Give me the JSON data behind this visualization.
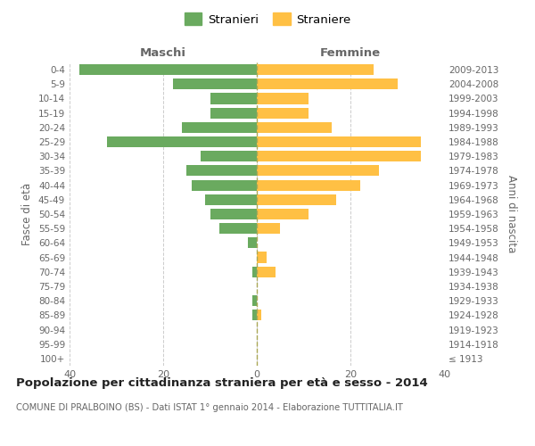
{
  "age_groups": [
    "100+",
    "95-99",
    "90-94",
    "85-89",
    "80-84",
    "75-79",
    "70-74",
    "65-69",
    "60-64",
    "55-59",
    "50-54",
    "45-49",
    "40-44",
    "35-39",
    "30-34",
    "25-29",
    "20-24",
    "15-19",
    "10-14",
    "5-9",
    "0-4"
  ],
  "birth_years": [
    "≤ 1913",
    "1914-1918",
    "1919-1923",
    "1924-1928",
    "1929-1933",
    "1934-1938",
    "1939-1943",
    "1944-1948",
    "1949-1953",
    "1954-1958",
    "1959-1963",
    "1964-1968",
    "1969-1973",
    "1974-1978",
    "1979-1983",
    "1984-1988",
    "1989-1993",
    "1994-1998",
    "1999-2003",
    "2004-2008",
    "2009-2013"
  ],
  "maschi": [
    0,
    0,
    0,
    1,
    1,
    0,
    1,
    0,
    2,
    8,
    10,
    11,
    14,
    15,
    12,
    32,
    16,
    10,
    10,
    18,
    38
  ],
  "femmine": [
    0,
    0,
    0,
    1,
    0,
    0,
    4,
    2,
    0,
    5,
    11,
    17,
    22,
    26,
    35,
    35,
    16,
    11,
    11,
    30,
    25
  ],
  "maschi_color": "#6aaa5f",
  "femmine_color": "#ffc044",
  "title": "Popolazione per cittadinanza straniera per età e sesso - 2014",
  "subtitle": "COMUNE DI PRALBOINO (BS) - Dati ISTAT 1° gennaio 2014 - Elaborazione TUTTITALIA.IT",
  "ylabel_left": "Fasce di età",
  "ylabel_right": "Anni di nascita",
  "header_left": "Maschi",
  "header_right": "Femmine",
  "legend_stranieri": "Stranieri",
  "legend_straniere": "Straniere",
  "xlim": 40,
  "background_color": "#ffffff",
  "grid_color": "#cccccc",
  "text_color": "#666666",
  "title_color": "#222222"
}
